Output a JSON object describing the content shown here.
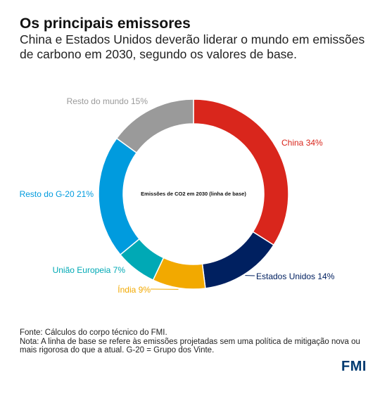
{
  "header": {
    "title": "Os principais emissores",
    "subtitle": "China e Estados Unidos deverão liderar o mundo em emissões de carbono em 2030, segundo os valores de base."
  },
  "chart_data": {
    "type": "pie",
    "donut": true,
    "center_label": "Emissões de CO2 em 2030 (linha de base)",
    "unit": "%",
    "legend": "none",
    "slices": [
      {
        "label": "China 34%",
        "name": "China",
        "value": 34,
        "color": "#d9261c"
      },
      {
        "label": "Estados Unidos 14%",
        "name": "Estados Unidos",
        "value": 14,
        "color": "#002060"
      },
      {
        "label": "Índia 9%",
        "name": "Índia",
        "value": 9,
        "color": "#f2a900"
      },
      {
        "label": "União Europeia 7%",
        "name": "União Europeia",
        "value": 7,
        "color": "#00a9b5"
      },
      {
        "label": "Resto do G-20 21%",
        "name": "Resto do G-20",
        "value": 21,
        "color": "#009bde"
      },
      {
        "label": "Resto do mundo 15%",
        "name": "Resto do mundo",
        "value": 15,
        "color": "#9a9a9a"
      }
    ]
  },
  "footer": {
    "source": "Fonte: Cálculos do corpo técnico do FMI.",
    "note": "Nota: A linha de base se refere às emissões projetadas sem uma política de mitigação nova ou mais rigorosa do que a atual. G-20 = Grupo dos Vinte.",
    "logo": "FMI"
  }
}
